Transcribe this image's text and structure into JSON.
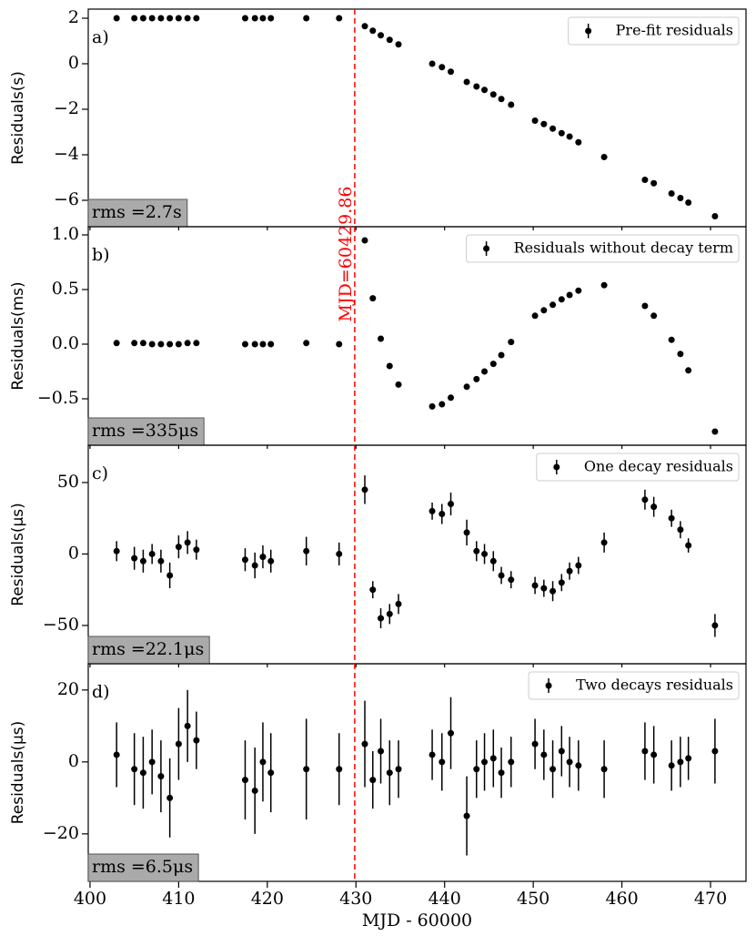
{
  "chart_data": [
    {
      "type": "scatter",
      "panel_label": "a)",
      "ylabel": "Residuals(s)",
      "rms": "rms =2.7s",
      "x": [
        403,
        405,
        406,
        407,
        408,
        409,
        410,
        411,
        412,
        417.5,
        418.6,
        419.5,
        420.4,
        424.4,
        428.1,
        431.0,
        431.9,
        432.8,
        433.8,
        434.8,
        438.6,
        439.7,
        440.7,
        442.5,
        443.6,
        444.5,
        445.5,
        446.4,
        447.5,
        450.2,
        451.2,
        452.2,
        453.2,
        454.1,
        455.1,
        458.0,
        462.6,
        463.6,
        465.6,
        466.6,
        467.5,
        470.5
      ],
      "series": [
        {
          "name": "Pre-fit residuals",
          "color": "#000000",
          "values": [
            2,
            2,
            2,
            2,
            2,
            2,
            2,
            2,
            2,
            2,
            2,
            2,
            2,
            2,
            2,
            1.65,
            1.45,
            1.25,
            1.05,
            0.85,
            0.0,
            -0.15,
            -0.35,
            -0.8,
            -1.0,
            -1.15,
            -1.35,
            -1.55,
            -1.8,
            -2.5,
            -2.65,
            -2.85,
            -3.05,
            -3.2,
            -3.45,
            -4.1,
            -5.1,
            -5.25,
            -5.7,
            -5.9,
            -6.1,
            -6.7
          ]
        }
      ],
      "xlim": [
        399.8,
        474
      ],
      "xticks": [
        400,
        410,
        420,
        430,
        440,
        450,
        460,
        470
      ],
      "ylim": [
        -7.16,
        2.4
      ],
      "yticks": [
        2,
        0,
        {
          "value": -2,
          "label": "−2"
        },
        {
          "value": -4,
          "label": "−4"
        },
        {
          "value": -6,
          "label": "−6"
        }
      ],
      "vline": 429.86,
      "vline_color": "#ff0000"
    },
    {
      "type": "scatter",
      "panel_label": "b)",
      "ylabel": "Residuals(ms)",
      "rms": "rms =335μs",
      "annotation": "MJD=60429.86",
      "x": [
        403,
        405,
        406,
        407,
        408,
        409,
        410,
        411,
        412,
        417.5,
        418.6,
        419.5,
        420.4,
        424.4,
        428.1,
        431.0,
        431.9,
        432.8,
        433.8,
        434.8,
        438.6,
        439.7,
        440.7,
        442.5,
        443.6,
        444.5,
        445.5,
        446.4,
        447.5,
        450.2,
        451.2,
        452.2,
        453.2,
        454.1,
        455.1,
        458.0,
        462.6,
        463.6,
        465.6,
        466.6,
        467.5,
        470.5
      ],
      "series": [
        {
          "name": "Residuals without decay term",
          "color": "#000000",
          "values": [
            0.01,
            0.01,
            0.01,
            0.0,
            0.0,
            0.0,
            0.0,
            0.01,
            0.01,
            0.0,
            0.0,
            0.0,
            0.0,
            0.01,
            0.0,
            0.95,
            0.42,
            0.05,
            -0.2,
            -0.37,
            -0.57,
            -0.55,
            -0.49,
            -0.39,
            -0.32,
            -0.25,
            -0.18,
            -0.1,
            0.02,
            0.26,
            0.31,
            0.36,
            0.41,
            0.45,
            0.49,
            0.54,
            0.35,
            0.26,
            0.04,
            -0.09,
            -0.24,
            -0.8
          ]
        }
      ],
      "xlim": [
        399.8,
        474
      ],
      "xticks": [
        400,
        410,
        420,
        430,
        440,
        450,
        460,
        470
      ],
      "ylim": [
        -0.925,
        1.075
      ],
      "yticks": [
        {
          "value": 1,
          "label": "1.0"
        },
        0.5,
        {
          "value": 0,
          "label": "0.0"
        },
        {
          "value": -0.5,
          "label": "−0.5"
        }
      ],
      "vline": 429.86,
      "vline_color": "#ff0000"
    },
    {
      "type": "scatter",
      "panel_label": "c)",
      "ylabel": "Residuals(μs)",
      "rms": "rms =22.1μs",
      "x": [
        403,
        405,
        406,
        407,
        408,
        409,
        410,
        411,
        412,
        417.5,
        418.6,
        419.5,
        420.4,
        424.4,
        428.1,
        431.0,
        431.9,
        432.8,
        433.8,
        434.8,
        438.6,
        439.7,
        440.7,
        442.5,
        443.6,
        444.5,
        445.5,
        446.4,
        447.5,
        450.2,
        451.2,
        452.2,
        453.2,
        454.1,
        455.1,
        458.0,
        462.6,
        463.6,
        465.6,
        466.6,
        467.5,
        470.5
      ],
      "series": [
        {
          "name": "One decay residuals",
          "color": "#000000",
          "values": [
            2,
            -3,
            -5,
            0,
            -5,
            -15,
            5,
            8,
            3,
            -4,
            -8,
            -2,
            -5,
            2,
            0,
            45,
            -25,
            -45,
            -42,
            -35,
            30,
            28,
            35,
            15,
            2,
            0,
            -5,
            -15,
            -18,
            -22,
            -24,
            -26,
            -20,
            -12,
            -8,
            8,
            38,
            33,
            25,
            17,
            6,
            -50
          ],
          "errors": [
            7,
            8,
            8,
            7,
            8,
            9,
            8,
            8,
            7,
            8,
            9,
            8,
            8,
            10,
            8,
            10,
            6,
            7,
            7,
            7,
            6,
            7,
            8,
            9,
            7,
            7,
            7,
            6,
            6,
            6,
            6,
            7,
            6,
            6,
            6,
            7,
            7,
            7,
            6,
            6,
            5,
            8
          ]
        }
      ],
      "xlim": [
        399.8,
        474
      ],
      "xticks": [
        400,
        410,
        420,
        430,
        440,
        450,
        460,
        470
      ],
      "ylim": [
        -76.8,
        76.1
      ],
      "yticks": [
        50,
        0,
        {
          "value": -50,
          "label": "−50"
        }
      ],
      "vline": 429.86,
      "vline_color": "#ff0000"
    },
    {
      "type": "scatter",
      "panel_label": "d)",
      "ylabel": "Residuals(μs)",
      "rms": "rms =6.5μs",
      "xlabel": "MJD - 60000",
      "x": [
        403,
        405,
        406,
        407,
        408,
        409,
        410,
        411,
        412,
        417.5,
        418.6,
        419.5,
        420.4,
        424.4,
        428.1,
        431.0,
        431.9,
        432.8,
        433.8,
        434.8,
        438.6,
        439.7,
        440.7,
        442.5,
        443.6,
        444.5,
        445.5,
        446.4,
        447.5,
        450.2,
        451.2,
        452.2,
        453.2,
        454.1,
        455.1,
        458.0,
        462.6,
        463.6,
        465.6,
        466.6,
        467.5,
        470.5
      ],
      "series": [
        {
          "name": "Two decays residuals",
          "color": "#000000",
          "values": [
            2,
            -2,
            -3,
            0,
            -4,
            -10,
            5,
            10,
            6,
            -5,
            -8,
            0,
            -3,
            -2,
            -2,
            5,
            -5,
            3,
            -3,
            -2,
            2,
            0,
            8,
            -15,
            -2,
            0,
            1,
            -3,
            0,
            5,
            2,
            -2,
            3,
            0,
            -1,
            -2,
            3,
            2,
            -1,
            0,
            1,
            3
          ],
          "errors": [
            9,
            10,
            10,
            9,
            10,
            11,
            10,
            10,
            8,
            11,
            12,
            11,
            11,
            14,
            10,
            12,
            8,
            9,
            9,
            8,
            7,
            8,
            10,
            11,
            8,
            8,
            8,
            7,
            7,
            7,
            7,
            8,
            7,
            7,
            7,
            8,
            8,
            8,
            7,
            7,
            6,
            9
          ]
        }
      ],
      "xlim": [
        399.8,
        474
      ],
      "xticks": [
        400,
        410,
        420,
        430,
        440,
        450,
        460,
        470
      ],
      "ylim": [
        -33.2,
        27.3
      ],
      "yticks": [
        20,
        0,
        {
          "value": -20,
          "label": "−20"
        }
      ],
      "vline": 429.86,
      "vline_color": "#ff0000"
    }
  ]
}
